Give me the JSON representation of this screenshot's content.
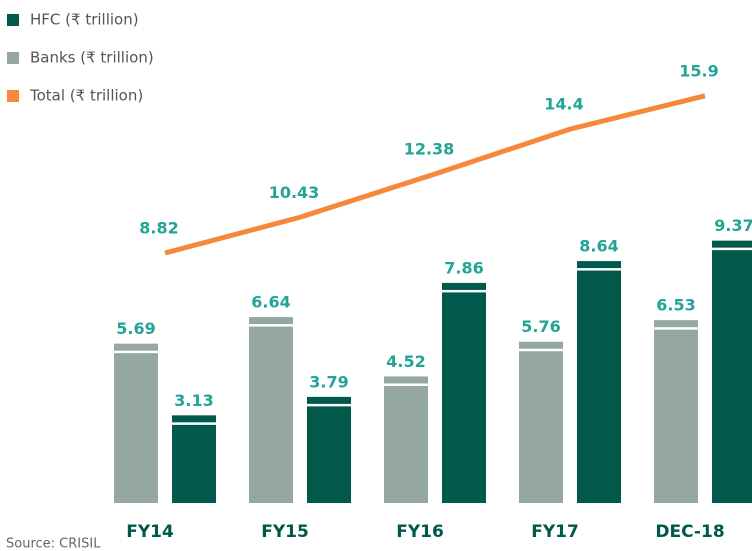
{
  "chart_data": {
    "type": "bar_line",
    "categories": [
      "FY14",
      "FY15",
      "FY16",
      "FY17",
      "DEC-18"
    ],
    "series": [
      {
        "name": "HFC (₹ trillion)",
        "color": "#00594b",
        "values": [
          3.13,
          3.79,
          7.86,
          8.64,
          9.37
        ]
      },
      {
        "name": "Banks (₹ trillion)",
        "color": "#95a7a2",
        "values": [
          5.69,
          6.64,
          4.52,
          5.76,
          6.53
        ]
      },
      {
        "name": "Total (₹ trillion)",
        "color": "#f5883a",
        "values": [
          8.82,
          10.43,
          12.38,
          14.4,
          15.9
        ]
      }
    ],
    "source": "Source: CRISIL"
  }
}
